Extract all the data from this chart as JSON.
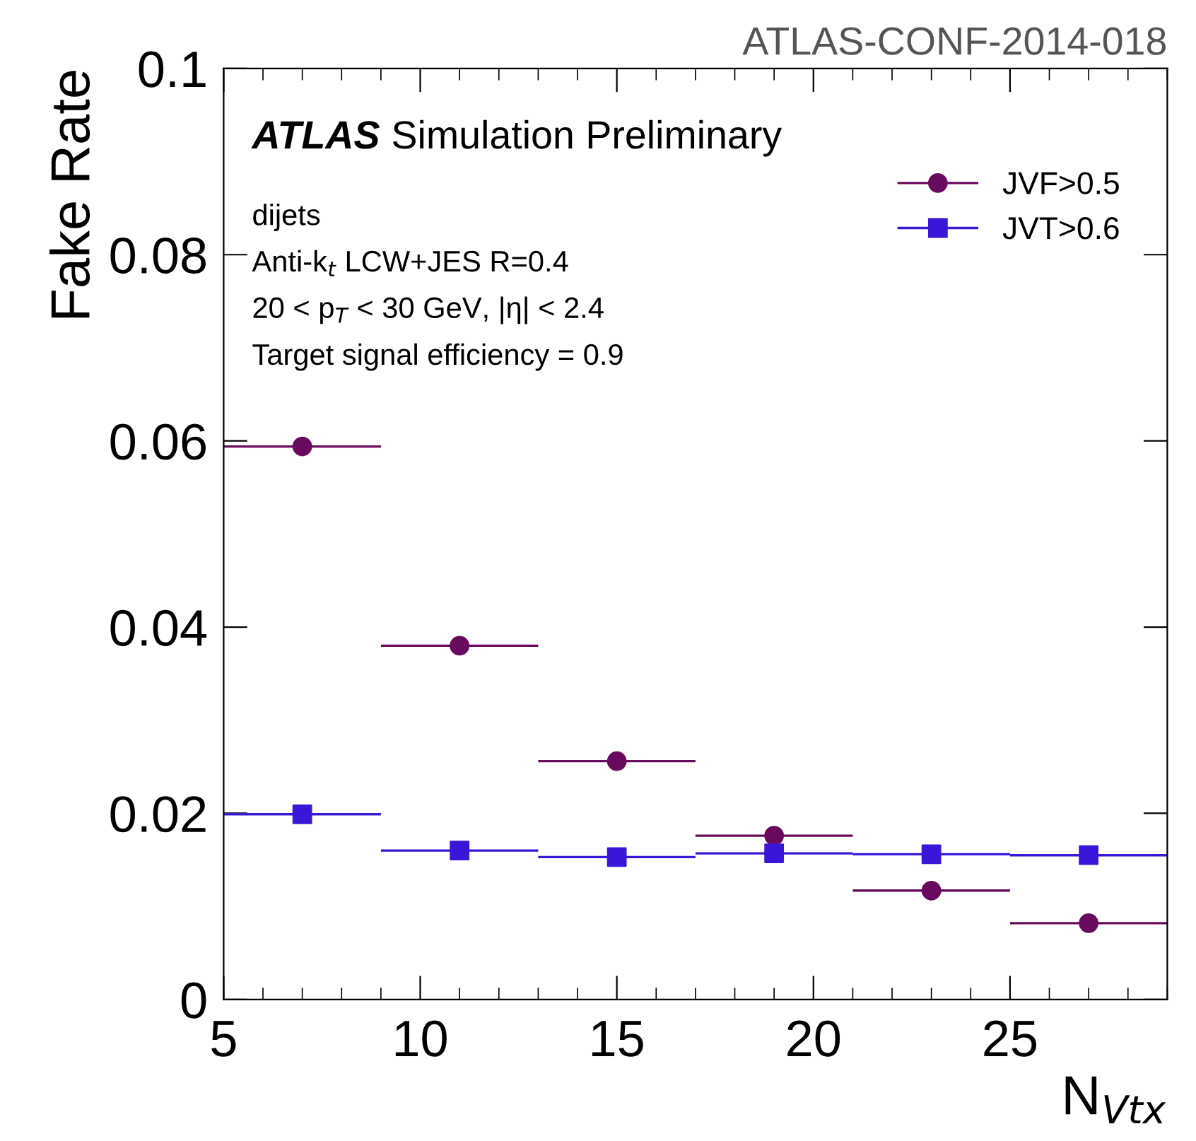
{
  "chart_data": {
    "type": "scatter",
    "xlabel": "N$_{Vtx}$",
    "ylabel": "Fake Rate",
    "x": [
      7,
      11,
      15,
      19,
      23,
      27
    ],
    "series": [
      {
        "name": "JVF>0.5",
        "color": "#6a0a5e",
        "marker": "circle",
        "values": [
          0.0594,
          0.038,
          0.0256,
          0.0176,
          0.0117,
          0.0082
        ],
        "xerrors": [
          2,
          2,
          2,
          2,
          2,
          2
        ],
        "errors": [
          0.0008,
          null,
          null,
          null,
          null,
          null
        ]
      },
      {
        "name": "JVT>0.6",
        "color": "#3a16d8",
        "marker": "square",
        "values": [
          0.0199,
          0.016,
          0.0153,
          0.0157,
          0.0156,
          0.0155
        ],
        "xerrors": [
          2,
          2,
          2,
          2,
          2,
          2
        ],
        "errors": [
          null,
          null,
          null,
          null,
          null,
          null
        ]
      }
    ],
    "xlim": [
      5,
      29
    ],
    "xticks": [
      5,
      10,
      15,
      20,
      25
    ],
    "ylim": [
      0,
      0.1
    ],
    "yticks": [
      {
        "value": 0,
        "label": "0"
      },
      0.02,
      0.04,
      0.06,
      0.08,
      0.1
    ],
    "grid": false,
    "legend": "top right",
    "annotations": [
      "ATLAS-CONF-2014-018",
      "ATLAS",
      "Simulation Preliminary",
      "dijets",
      "Anti-k$_{t}$ LCW+JES R=0.4",
      "20 < p$_{T}$ < 30 GeV, |η| < 2.4",
      "Target signal efficiency = 0.9"
    ]
  }
}
